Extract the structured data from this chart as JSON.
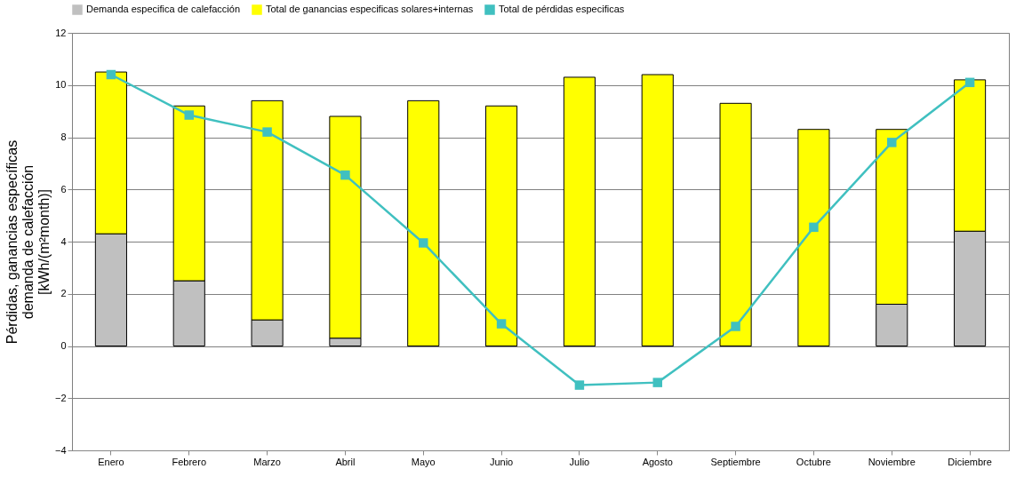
{
  "chart_data": {
    "type": "bar",
    "stacked": true,
    "ylabel": "Pérdidas, ganancias específicas\ndemanda de calefacción\n[kWh/(m²month)]",
    "categories": [
      "Enero",
      "Febrero",
      "Marzo",
      "Abril",
      "Mayo",
      "Junio",
      "Julio",
      "Agosto",
      "Septiembre",
      "Octubre",
      "Noviembre",
      "Diciembre"
    ],
    "series": [
      {
        "name": "Demanda especifica de calefacción",
        "color": "#c0c0c0",
        "values": [
          4.3,
          2.5,
          1.0,
          0.3,
          0,
          0,
          0,
          0,
          0,
          0,
          1.6,
          4.4
        ]
      },
      {
        "name": "Total de ganancias especificas solares+internas",
        "color": "#ffff00",
        "values": [
          6.2,
          6.7,
          8.4,
          8.5,
          9.4,
          9.2,
          10.3,
          10.4,
          9.3,
          8.3,
          6.7,
          5.8
        ]
      },
      {
        "name": "Total de pérdidas especificas",
        "type": "line",
        "color": "#40c0c0",
        "marker": "square",
        "values": [
          10.4,
          8.85,
          8.2,
          6.55,
          3.95,
          0.85,
          -1.5,
          -1.4,
          0.75,
          4.55,
          7.8,
          10.1
        ]
      }
    ],
    "ylim": [
      -4,
      12
    ],
    "yticks": [
      -4,
      -2,
      0,
      2,
      4,
      6,
      8,
      10,
      12
    ],
    "grid": "y",
    "legend": "top"
  }
}
